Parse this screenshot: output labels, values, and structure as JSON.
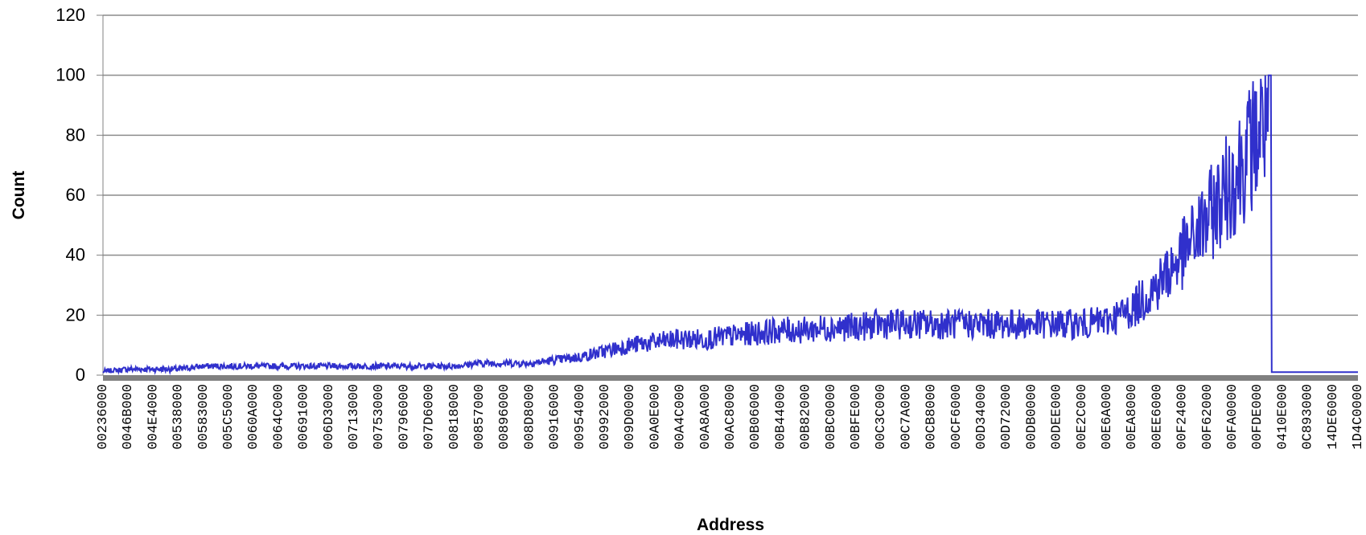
{
  "chart_data": {
    "type": "line",
    "title": "",
    "xlabel": "Address",
    "ylabel": "Count",
    "ylim": [
      0,
      120
    ],
    "y_ticks": [
      0,
      20,
      40,
      60,
      80,
      100,
      120
    ],
    "grid": true,
    "legend": "none",
    "series_color": "#3030CC",
    "x_tick_labels": [
      "00236000",
      "0046B000",
      "004E4000",
      "00538000",
      "00583000",
      "005C5000",
      "0060A000",
      "0064C000",
      "00691000",
      "006D3000",
      "00713000",
      "00753000",
      "00796000",
      "007D6000",
      "00818000",
      "00857000",
      "00896000",
      "008D8000",
      "00916000",
      "00954000",
      "00992000",
      "009D0000",
      "00A0E000",
      "00A4C000",
      "00A8A000",
      "00AC8000",
      "00B06000",
      "00B44000",
      "00B82000",
      "00BC0000",
      "00BFE000",
      "00C3C000",
      "00C7A000",
      "00CB8000",
      "00CF6000",
      "00D34000",
      "00D72000",
      "00DB0000",
      "00DEE000",
      "00E2C000",
      "00E6A000",
      "00EA8000",
      "00EE6000",
      "00F24000",
      "00F62000",
      "00FA0000",
      "00FDE000",
      "0410E000",
      "0C893000",
      "14DE6000",
      "1D4C0000"
    ],
    "series": [
      {
        "x_index": [
          0,
          1,
          2,
          3,
          4,
          5,
          6,
          7,
          8,
          9,
          10,
          11,
          12,
          13,
          14,
          15,
          16,
          17,
          18,
          19,
          20,
          21,
          22,
          23,
          24,
          25,
          26,
          27,
          28,
          29,
          30,
          31,
          32,
          33,
          34,
          35,
          36,
          37,
          38,
          39,
          40,
          41,
          42,
          43,
          44,
          45,
          46,
          46.5,
          47,
          48,
          49,
          50
        ],
        "values": [
          1,
          2,
          2,
          2,
          3,
          3,
          3,
          3,
          3,
          3,
          3,
          3,
          3,
          3,
          3,
          4,
          4,
          4,
          5,
          6,
          8,
          10,
          11,
          12,
          12,
          13,
          14,
          15,
          15,
          16,
          16,
          17,
          17,
          17,
          17,
          17,
          17,
          17,
          17,
          17,
          18,
          22,
          30,
          40,
          52,
          65,
          80,
          90,
          1,
          1,
          1,
          1
        ]
      }
    ]
  }
}
